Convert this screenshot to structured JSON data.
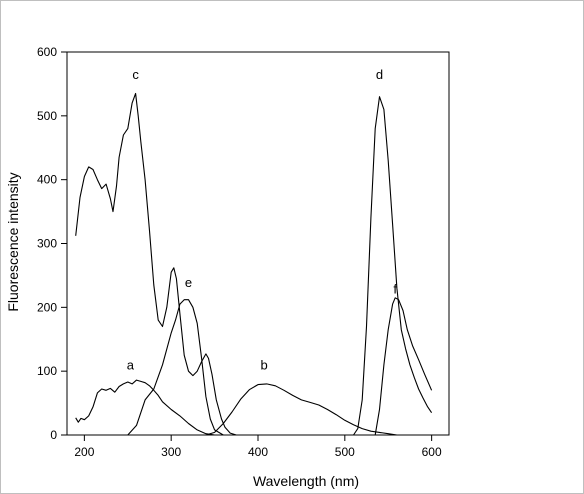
{
  "chart_data": {
    "type": "line",
    "title": "",
    "xlabel": "Wavelength (nm)",
    "ylabel": "Fluorescence intensity",
    "xlim": [
      180,
      620
    ],
    "ylim": [
      0,
      600
    ],
    "xticks": [
      200,
      300,
      400,
      500,
      600
    ],
    "yticks": [
      0,
      100,
      200,
      300,
      400,
      500,
      600
    ],
    "grid": false,
    "series": [
      {
        "name": "a",
        "label_at": [
          253,
          103
        ],
        "points": [
          [
            190,
            27
          ],
          [
            193,
            20
          ],
          [
            196,
            26
          ],
          [
            200,
            24
          ],
          [
            205,
            30
          ],
          [
            210,
            44
          ],
          [
            215,
            66
          ],
          [
            220,
            72
          ],
          [
            225,
            70
          ],
          [
            230,
            73
          ],
          [
            235,
            67
          ],
          [
            240,
            76
          ],
          [
            245,
            80
          ],
          [
            250,
            83
          ],
          [
            255,
            80
          ],
          [
            260,
            86
          ],
          [
            265,
            84
          ],
          [
            270,
            82
          ],
          [
            275,
            77
          ],
          [
            280,
            70
          ],
          [
            285,
            62
          ],
          [
            290,
            52
          ],
          [
            300,
            40
          ],
          [
            310,
            30
          ],
          [
            320,
            18
          ],
          [
            330,
            8
          ],
          [
            340,
            2
          ],
          [
            350,
            0
          ]
        ]
      },
      {
        "name": "b",
        "label_at": [
          407,
          103
        ],
        "points": [
          [
            340,
            0
          ],
          [
            350,
            4
          ],
          [
            360,
            18
          ],
          [
            370,
            36
          ],
          [
            380,
            56
          ],
          [
            390,
            71
          ],
          [
            400,
            79
          ],
          [
            410,
            80
          ],
          [
            420,
            77
          ],
          [
            430,
            70
          ],
          [
            440,
            62
          ],
          [
            450,
            55
          ],
          [
            460,
            51
          ],
          [
            470,
            47
          ],
          [
            480,
            40
          ],
          [
            490,
            32
          ],
          [
            500,
            23
          ],
          [
            510,
            16
          ],
          [
            520,
            10
          ],
          [
            530,
            6
          ],
          [
            540,
            4
          ],
          [
            550,
            2
          ],
          [
            560,
            0
          ]
        ]
      },
      {
        "name": "c",
        "label_at": [
          259,
          558
        ],
        "points": [
          [
            190,
            312
          ],
          [
            195,
            372
          ],
          [
            200,
            405
          ],
          [
            205,
            420
          ],
          [
            210,
            416
          ],
          [
            215,
            400
          ],
          [
            220,
            386
          ],
          [
            225,
            393
          ],
          [
            230,
            370
          ],
          [
            233,
            350
          ],
          [
            237,
            390
          ],
          [
            240,
            435
          ],
          [
            245,
            470
          ],
          [
            250,
            480
          ],
          [
            255,
            520
          ],
          [
            259,
            535
          ],
          [
            262,
            500
          ],
          [
            265,
            460
          ],
          [
            270,
            400
          ],
          [
            275,
            320
          ],
          [
            280,
            235
          ],
          [
            285,
            180
          ],
          [
            290,
            170
          ],
          [
            295,
            200
          ],
          [
            300,
            255
          ],
          [
            303,
            262
          ],
          [
            306,
            245
          ],
          [
            310,
            190
          ],
          [
            315,
            125
          ],
          [
            320,
            100
          ],
          [
            325,
            93
          ],
          [
            330,
            100
          ],
          [
            335,
            115
          ],
          [
            340,
            127
          ],
          [
            343,
            120
          ],
          [
            347,
            95
          ],
          [
            352,
            55
          ],
          [
            358,
            25
          ],
          [
            362,
            12
          ],
          [
            368,
            3
          ],
          [
            375,
            0
          ]
        ]
      },
      {
        "name": "d",
        "label_at": [
          540,
          558
        ],
        "points": [
          [
            510,
            0
          ],
          [
            515,
            10
          ],
          [
            520,
            55
          ],
          [
            525,
            170
          ],
          [
            530,
            340
          ],
          [
            535,
            480
          ],
          [
            540,
            530
          ],
          [
            545,
            510
          ],
          [
            550,
            430
          ],
          [
            555,
            330
          ],
          [
            560,
            230
          ],
          [
            565,
            165
          ],
          [
            570,
            135
          ],
          [
            575,
            110
          ],
          [
            580,
            90
          ],
          [
            585,
            72
          ],
          [
            590,
            58
          ],
          [
            595,
            45
          ],
          [
            600,
            35
          ]
        ]
      },
      {
        "name": "e",
        "label_at": [
          320,
          232
        ],
        "points": [
          [
            250,
            0
          ],
          [
            260,
            15
          ],
          [
            270,
            55
          ],
          [
            280,
            72
          ],
          [
            290,
            110
          ],
          [
            300,
            160
          ],
          [
            305,
            180
          ],
          [
            310,
            205
          ],
          [
            315,
            212
          ],
          [
            320,
            212
          ],
          [
            325,
            200
          ],
          [
            330,
            175
          ],
          [
            335,
            120
          ],
          [
            340,
            60
          ],
          [
            345,
            25
          ],
          [
            350,
            8
          ],
          [
            360,
            0
          ]
        ]
      },
      {
        "name": "f",
        "label_at": [
          558,
          222
        ],
        "points": [
          [
            535,
            0
          ],
          [
            540,
            40
          ],
          [
            545,
            110
          ],
          [
            550,
            165
          ],
          [
            555,
            205
          ],
          [
            558,
            215
          ],
          [
            562,
            212
          ],
          [
            567,
            195
          ],
          [
            572,
            165
          ],
          [
            578,
            140
          ],
          [
            585,
            118
          ],
          [
            592,
            95
          ],
          [
            600,
            70
          ]
        ]
      }
    ]
  }
}
